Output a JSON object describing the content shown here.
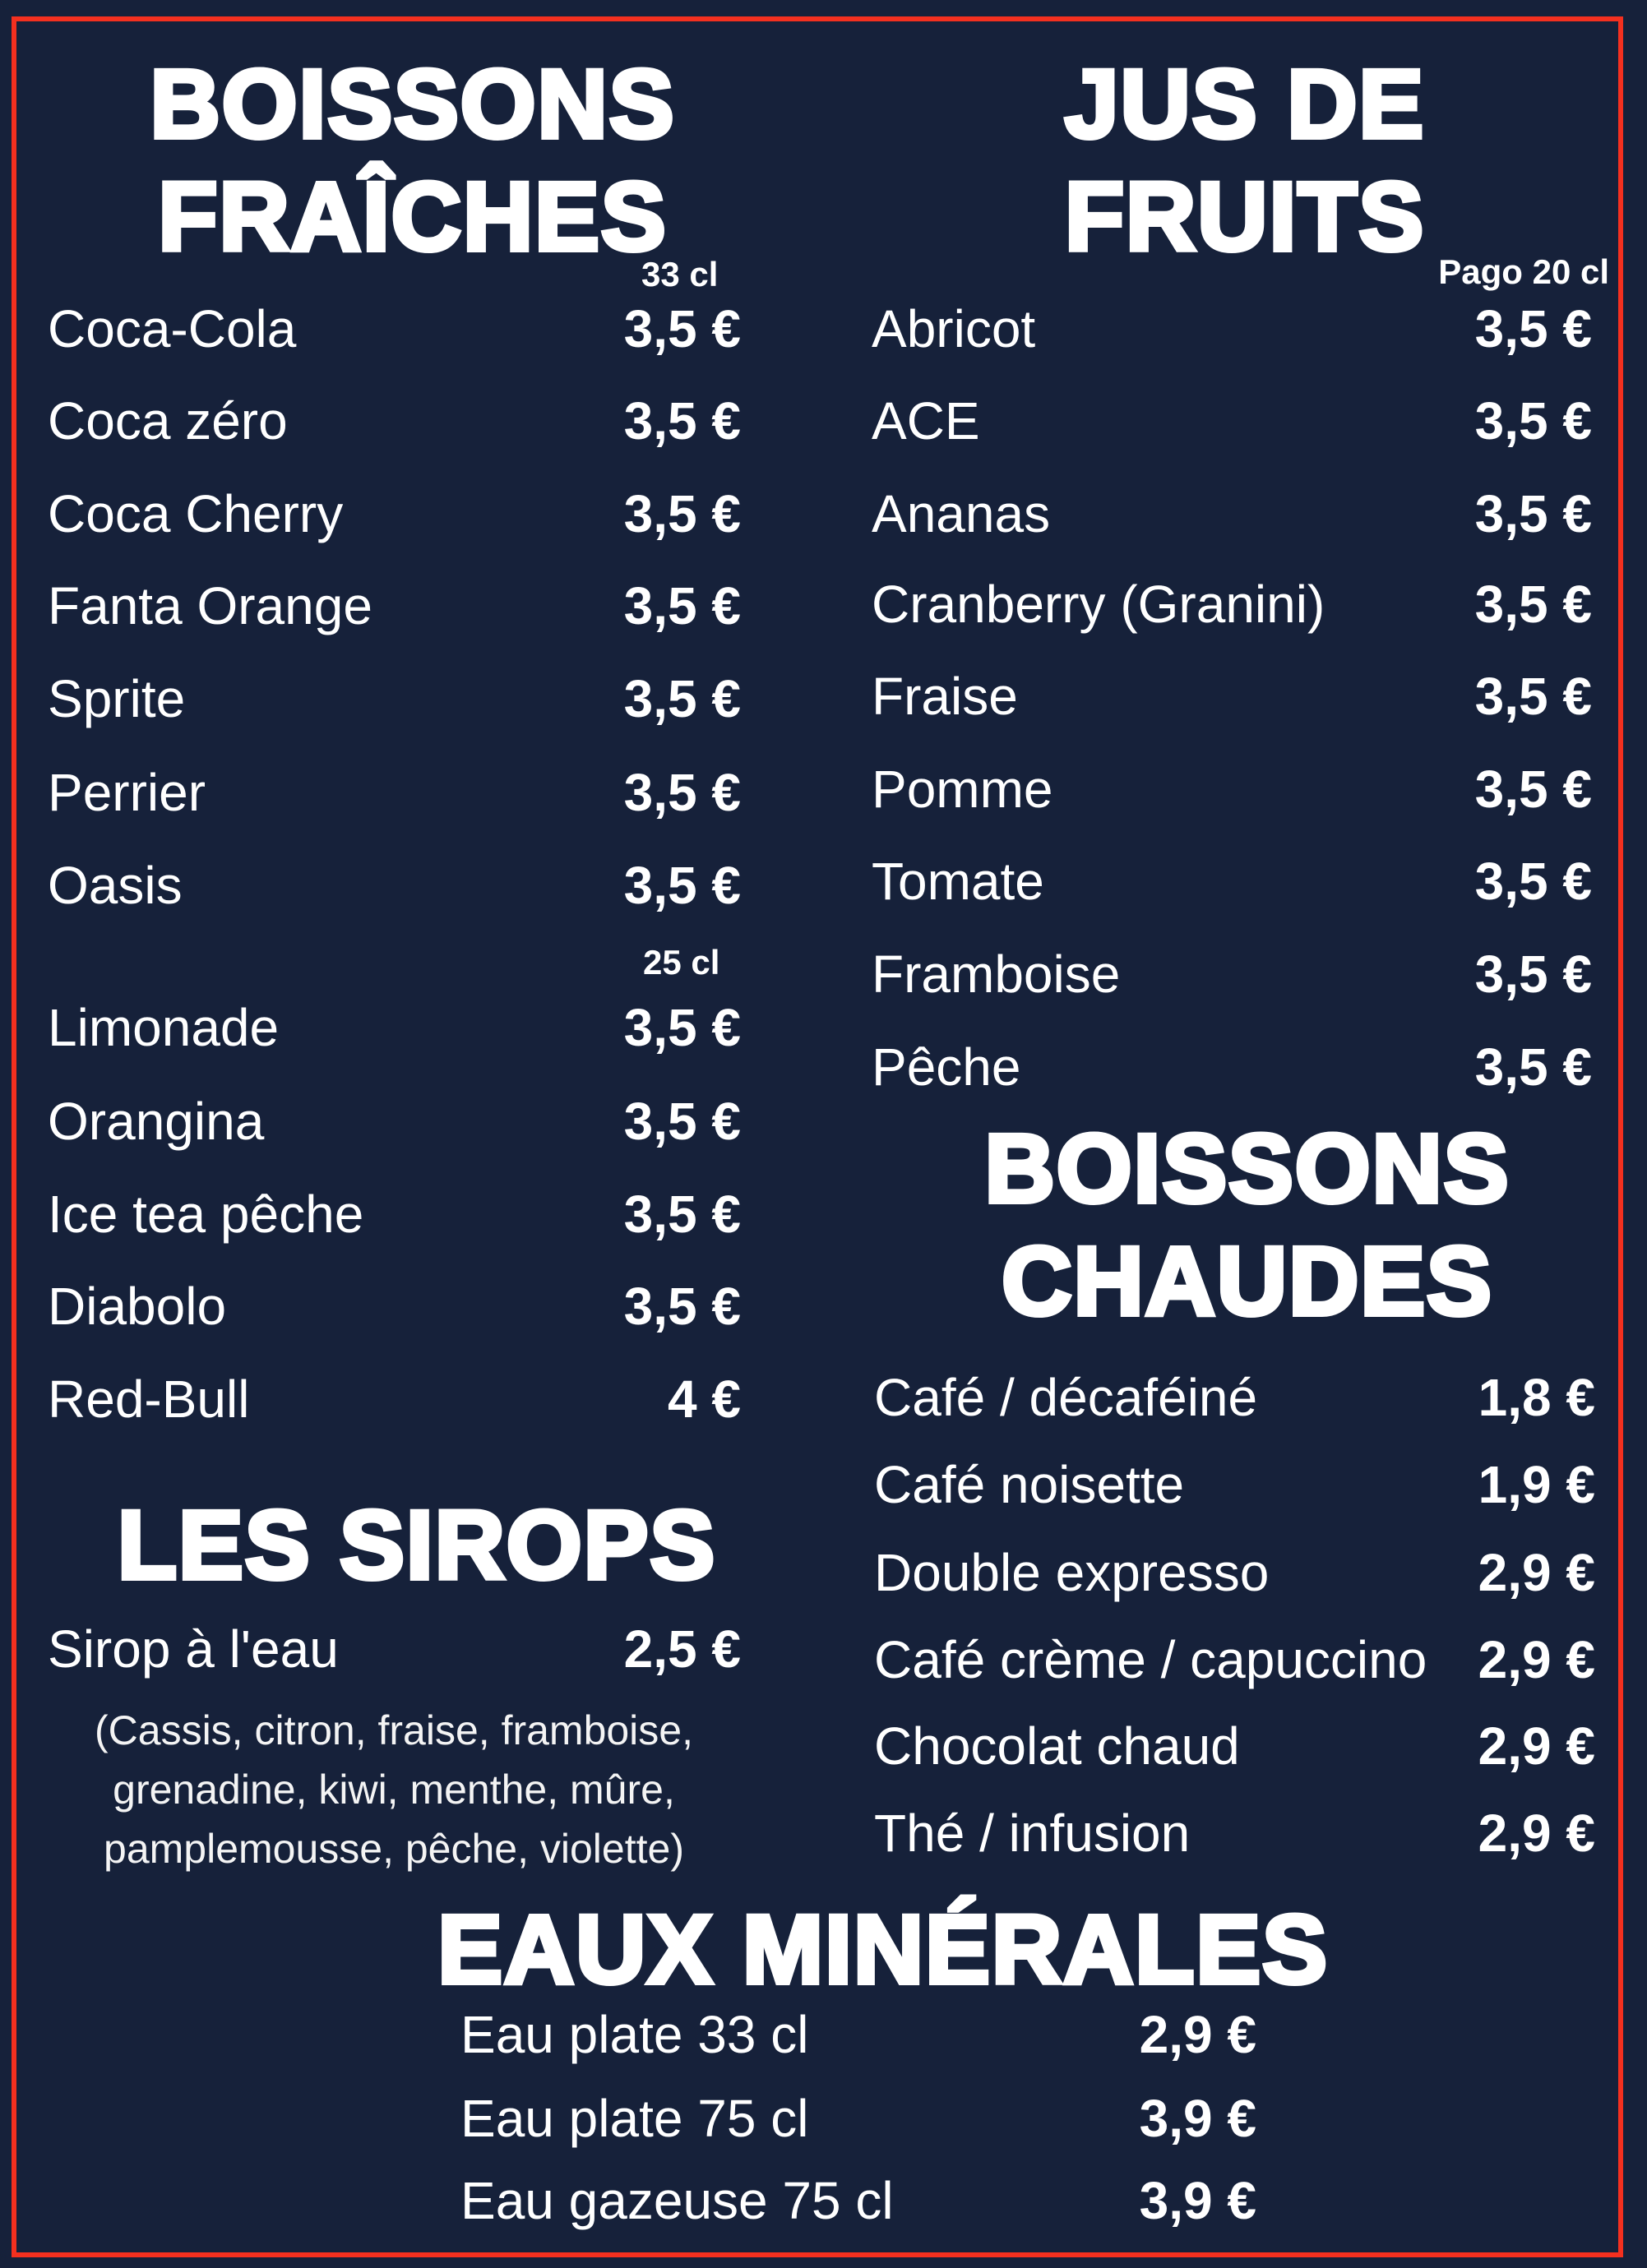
{
  "colors": {
    "background": "#16213a",
    "border": "#f4301f",
    "text": "#ffffff"
  },
  "boissons_fraiches": {
    "title_line1": "BOISSONS",
    "title_line2": "FRAÎCHES",
    "size_33": "33 cl",
    "size_25": "25 cl",
    "items_33": [
      {
        "name": "Coca-Cola",
        "price": "3,5 €"
      },
      {
        "name": "Coca zéro",
        "price": "3,5 €"
      },
      {
        "name": "Coca Cherry",
        "price": "3,5 €"
      },
      {
        "name": "Fanta Orange",
        "price": "3,5 €"
      },
      {
        "name": "Sprite",
        "price": "3,5 €"
      },
      {
        "name": "Perrier",
        "price": "3,5 €"
      },
      {
        "name": "Oasis",
        "price": "3,5 €"
      }
    ],
    "items_25": [
      {
        "name": "Limonade",
        "price": "3,5 €"
      },
      {
        "name": "Orangina",
        "price": "3,5 €"
      },
      {
        "name": "Ice tea pêche",
        "price": "3,5 €"
      },
      {
        "name": "Diabolo",
        "price": "3,5 €"
      },
      {
        "name": "Red-Bull",
        "price": "4 €"
      }
    ]
  },
  "jus_de_fruits": {
    "title_line1": "JUS DE",
    "title_line2": "FRUITS",
    "size": "Pago 20 cl",
    "items": [
      {
        "name": "Abricot",
        "price": "3,5 €"
      },
      {
        "name": "ACE",
        "price": "3,5 €"
      },
      {
        "name": "Ananas",
        "price": "3,5 €"
      },
      {
        "name": "Cranberry (Granini)",
        "price": "3,5 €"
      },
      {
        "name": "Fraise",
        "price": "3,5 €"
      },
      {
        "name": "Pomme",
        "price": "3,5 €"
      },
      {
        "name": "Tomate",
        "price": "3,5 €"
      },
      {
        "name": "Framboise",
        "price": "3,5 €"
      },
      {
        "name": "Pêche",
        "price": "3,5 €"
      }
    ]
  },
  "boissons_chaudes": {
    "title_line1": "BOISSONS",
    "title_line2": "CHAUDES",
    "items": [
      {
        "name": "Café / décaféiné",
        "price": "1,8 €"
      },
      {
        "name": "Café noisette",
        "price": "1,9 €"
      },
      {
        "name": "Double expresso",
        "price": "2,9 €"
      },
      {
        "name": "Café crème / capuccino",
        "price": "2,9 €"
      },
      {
        "name": "Chocolat chaud",
        "price": "2,9 €"
      },
      {
        "name": "Thé / infusion",
        "price": "2,9 €"
      }
    ]
  },
  "sirops": {
    "title": "LES SIROPS",
    "item": {
      "name": "Sirop à l'eau",
      "price": "2,5 €"
    },
    "flavours_lines": [
      "(Cassis, citron, fraise, framboise,",
      "grenadine, kiwi, menthe, mûre,",
      "pamplemousse, pêche, violette)"
    ]
  },
  "eaux_minerales": {
    "title": "EAUX MINÉRALES",
    "items": [
      {
        "name": "Eau plate 33 cl",
        "price": "2,9 €"
      },
      {
        "name": "Eau plate 75 cl",
        "price": "3,9 €"
      },
      {
        "name": "Eau gazeuse 75 cl",
        "price": "3,9 €"
      }
    ]
  }
}
